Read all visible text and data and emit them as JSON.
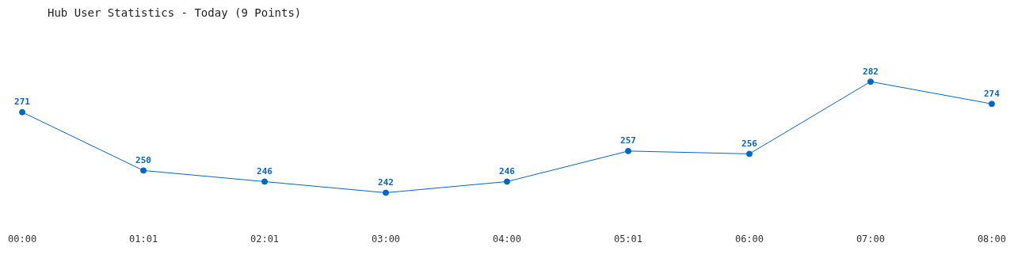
{
  "chart_data": {
    "type": "line",
    "title": "Hub User Statistics - Today (9 Points)",
    "categories": [
      "00:00",
      "01:01",
      "02:01",
      "03:00",
      "04:00",
      "05:01",
      "06:00",
      "07:00",
      "08:00"
    ],
    "series": [
      {
        "color": "#0066cc",
        "values": [
          271,
          250,
          246,
          242,
          246,
          257,
          256,
          282,
          274
        ]
      }
    ],
    "data_labels": true,
    "marker": "circle",
    "grid": false,
    "legend": false
  }
}
